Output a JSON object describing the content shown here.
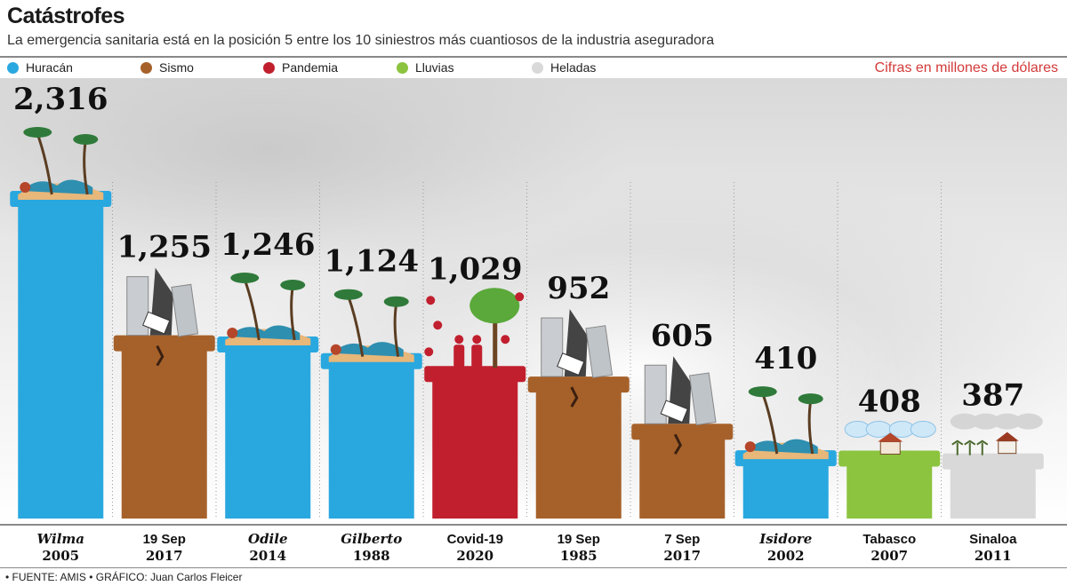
{
  "title": "Catástrofes",
  "subtitle": "La emergencia sanitaria está en la posición 5 entre los 10 siniestros más cuantiosos de la industria aseguradora",
  "units": "Cifras en millones de dólares",
  "legend": [
    {
      "label": "Huracán",
      "color": "#29a8e0"
    },
    {
      "label": "Sismo",
      "color": "#a6612a"
    },
    {
      "label": "Pandemia",
      "color": "#c11f2e"
    },
    {
      "label": "Lluvias",
      "color": "#8cc43f"
    },
    {
      "label": "Heladas",
      "color": "#d9d9d9"
    }
  ],
  "source": "• FUENTE: AMIS • GRÁFICO: Juan Carlos Fleicer",
  "chart_data": {
    "type": "bar",
    "categories": [
      {
        "name": "Wilma",
        "year": "2005",
        "italic": true,
        "kind": "Huracán",
        "value_label": "2,316"
      },
      {
        "name": "19 Sep",
        "year": "2017",
        "italic": false,
        "kind": "Sismo",
        "value_label": "1,255"
      },
      {
        "name": "Odile",
        "year": "2014",
        "italic": true,
        "kind": "Huracán",
        "value_label": "1,246"
      },
      {
        "name": "Gilberto",
        "year": "1988",
        "italic": true,
        "kind": "Huracán",
        "value_label": "1,124"
      },
      {
        "name": "Covid-19",
        "year": "2020",
        "italic": false,
        "kind": "Pandemia",
        "value_label": "1,029"
      },
      {
        "name": "19 Sep",
        "year": "1985",
        "italic": false,
        "kind": "Sismo",
        "value_label": "952"
      },
      {
        "name": "7 Sep",
        "year": "2017",
        "italic": false,
        "kind": "Sismo",
        "value_label": "605"
      },
      {
        "name": "Isidore",
        "year": "2002",
        "italic": true,
        "kind": "Huracán",
        "value_label": "410"
      },
      {
        "name": "Tabasco",
        "year": "2007",
        "italic": false,
        "kind": "Lluvias",
        "value_label": "408"
      },
      {
        "name": "Sinaloa",
        "year": "2011",
        "italic": false,
        "kind": "Heladas",
        "value_label": "387"
      }
    ],
    "values": [
      2316,
      1255,
      1246,
      1124,
      1029,
      952,
      605,
      410,
      408,
      387
    ],
    "colors": {
      "Huracán": "#29a8e0",
      "Sismo": "#a6612a",
      "Pandemia": "#c11f2e",
      "Lluvias": "#8cc43f",
      "Heladas": "#d9d9d9"
    },
    "ylim": [
      0,
      2316
    ]
  }
}
